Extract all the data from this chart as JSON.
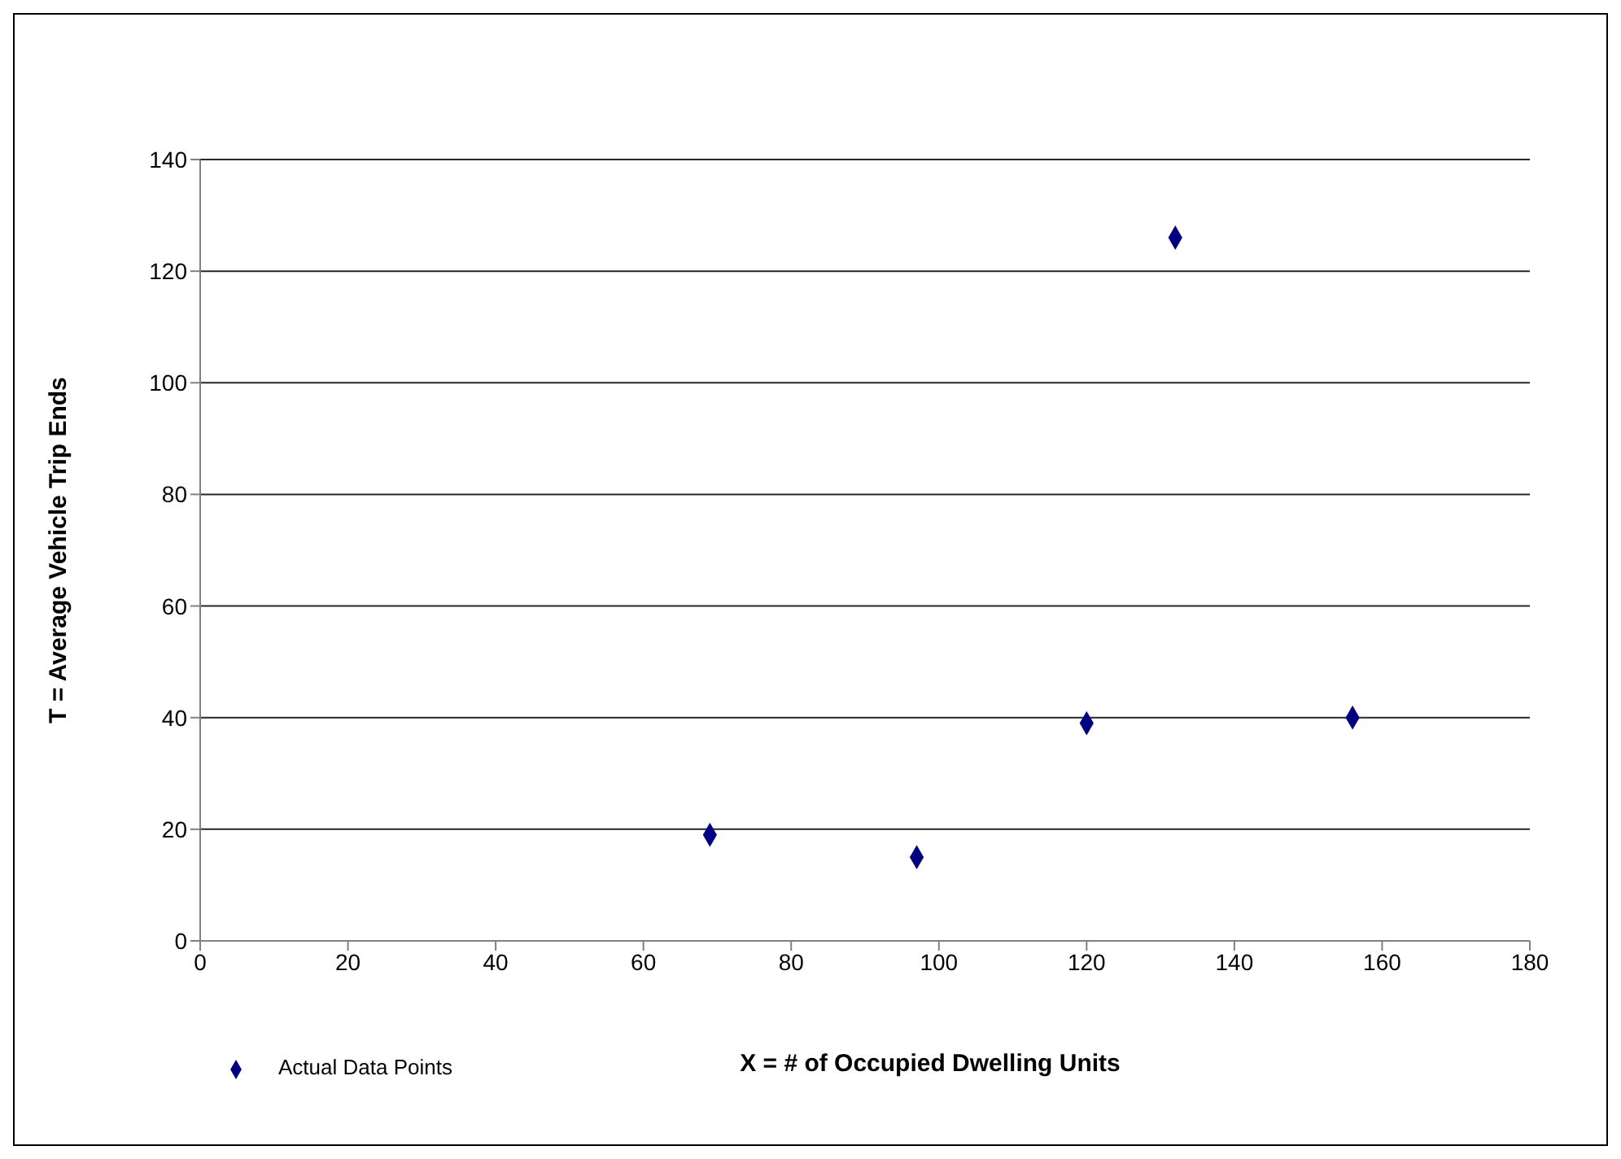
{
  "chart_data": {
    "type": "scatter",
    "xlabel": "X = # of Occupied Dwelling Units",
    "ylabel": "T = Average  Vehicle Trip Ends",
    "x": [
      69,
      97,
      120,
      132,
      156
    ],
    "series": [
      {
        "name": "Actual Data Points",
        "color": "#000080",
        "values": [
          19,
          15,
          39,
          126,
          40
        ]
      }
    ],
    "xlim": [
      0,
      180
    ],
    "xticks": [
      0,
      20,
      40,
      60,
      80,
      100,
      120,
      140,
      160,
      180
    ],
    "ylim": [
      0,
      140
    ],
    "yticks": [
      0,
      20,
      40,
      60,
      80,
      100,
      120,
      140
    ],
    "grid": "y",
    "legend": "bottom left",
    "marker": "diamond"
  }
}
